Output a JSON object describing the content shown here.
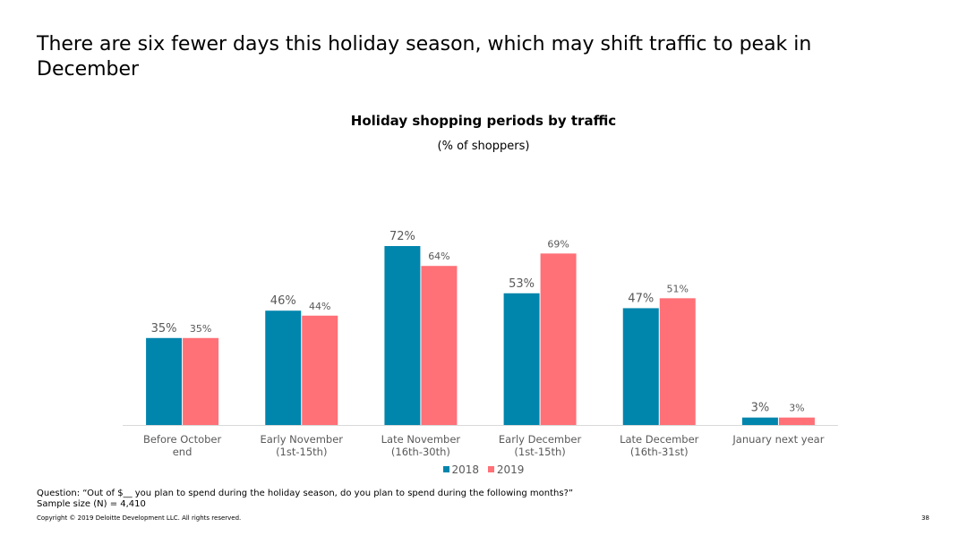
{
  "slide": {
    "title": "There are six fewer days this holiday season, which may shift traffic to peak in December",
    "question": "Question: “Out of $__ you plan to spend during the holiday season, do you plan to spend during the following months?”",
    "sample_size": "Sample size (N) = 4,410",
    "copyright": "Copyright © 2019 Deloitte Development LLC. All rights reserved.",
    "page_number": "38"
  },
  "chart_data": {
    "type": "bar",
    "title": "Holiday shopping periods by traffic",
    "subtitle": "(% of shoppers)",
    "categories": [
      [
        "Before October",
        "end"
      ],
      [
        "Early November",
        "(1st-15th)"
      ],
      [
        "Late November",
        "(16th-30th)"
      ],
      [
        "Early December",
        "(1st-15th)"
      ],
      [
        "Late December",
        "(16th-31st)"
      ],
      [
        "January next year"
      ]
    ],
    "series": [
      {
        "name": "2018",
        "color": "#0085AD",
        "values": [
          35,
          46,
          72,
          53,
          47,
          3
        ],
        "labels": [
          "35%",
          "46%",
          "72%",
          "53%",
          "47%",
          "3%"
        ]
      },
      {
        "name": "2019",
        "color": "#FF7077",
        "values": [
          35,
          44,
          64,
          69,
          51,
          3
        ],
        "labels": [
          "35%",
          "44%",
          "64%",
          "69%",
          "51%",
          "3%"
        ]
      }
    ],
    "ylim": [
      0,
      72
    ],
    "grid": false,
    "legend": "bottom-center"
  }
}
